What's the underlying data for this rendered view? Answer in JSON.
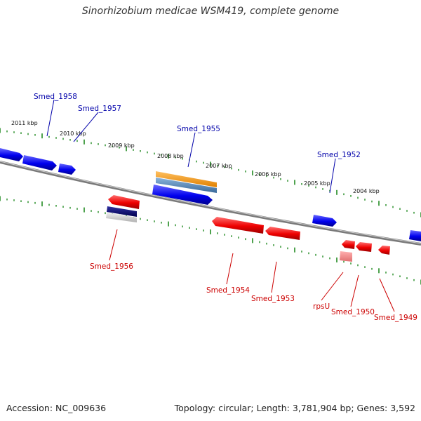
{
  "title": "Sinorhizobium medicae WSM419, complete genome",
  "accession": "Accession: NC_009636",
  "topology": "Topology: circular; Length: 3,781,904 bp; Genes: 3,592",
  "colors": {
    "forward_gene": "#0000ee",
    "reverse_gene": "#ee0000",
    "backbone": "#888888",
    "ticks": "#228b22",
    "orange_feature": "#f59a10",
    "steelblue_feature": "#4682b4",
    "navy_feature": "#000060",
    "label_forward": "#0000aa",
    "label_reverse": "#cc0000"
  },
  "kbp_labels": [
    "2011 kbp",
    "2010 kbp",
    "2009 kbp",
    "2008 kbp",
    "2007 kbp",
    "2006 kbp",
    "2005 kbp",
    "2004 kbp"
  ],
  "forward_genes": [
    "Smed_1958",
    "Smed_1957",
    "Smed_1955",
    "Smed_1952"
  ],
  "reverse_genes": [
    "Smed_1956",
    "Smed_1954",
    "Smed_1953",
    "rpsU",
    "Smed_1950",
    "Smed_1949"
  ]
}
